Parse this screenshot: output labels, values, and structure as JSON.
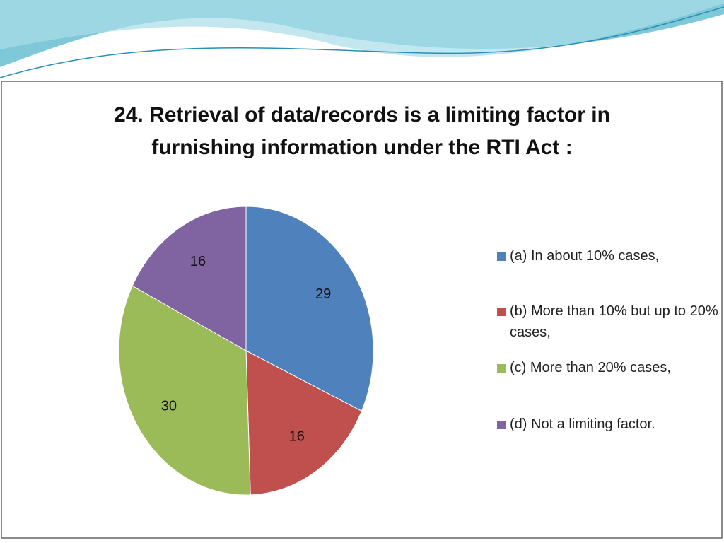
{
  "chart_data": {
    "type": "pie",
    "title": "24.  Retrieval of data/records is a limiting factor in furnishing information under the RTI Act  :",
    "categories": [
      "(a)   In about 10% cases,",
      "(b)   More than 10% but up to 20% cases,",
      "(c)    More than 20% cases,",
      "(d)   Not a limiting factor."
    ],
    "values": [
      29,
      16,
      30,
      16
    ],
    "colors": [
      "#4f81bd",
      "#c0504d",
      "#9bbb59",
      "#8064a2"
    ],
    "legend": "right"
  }
}
